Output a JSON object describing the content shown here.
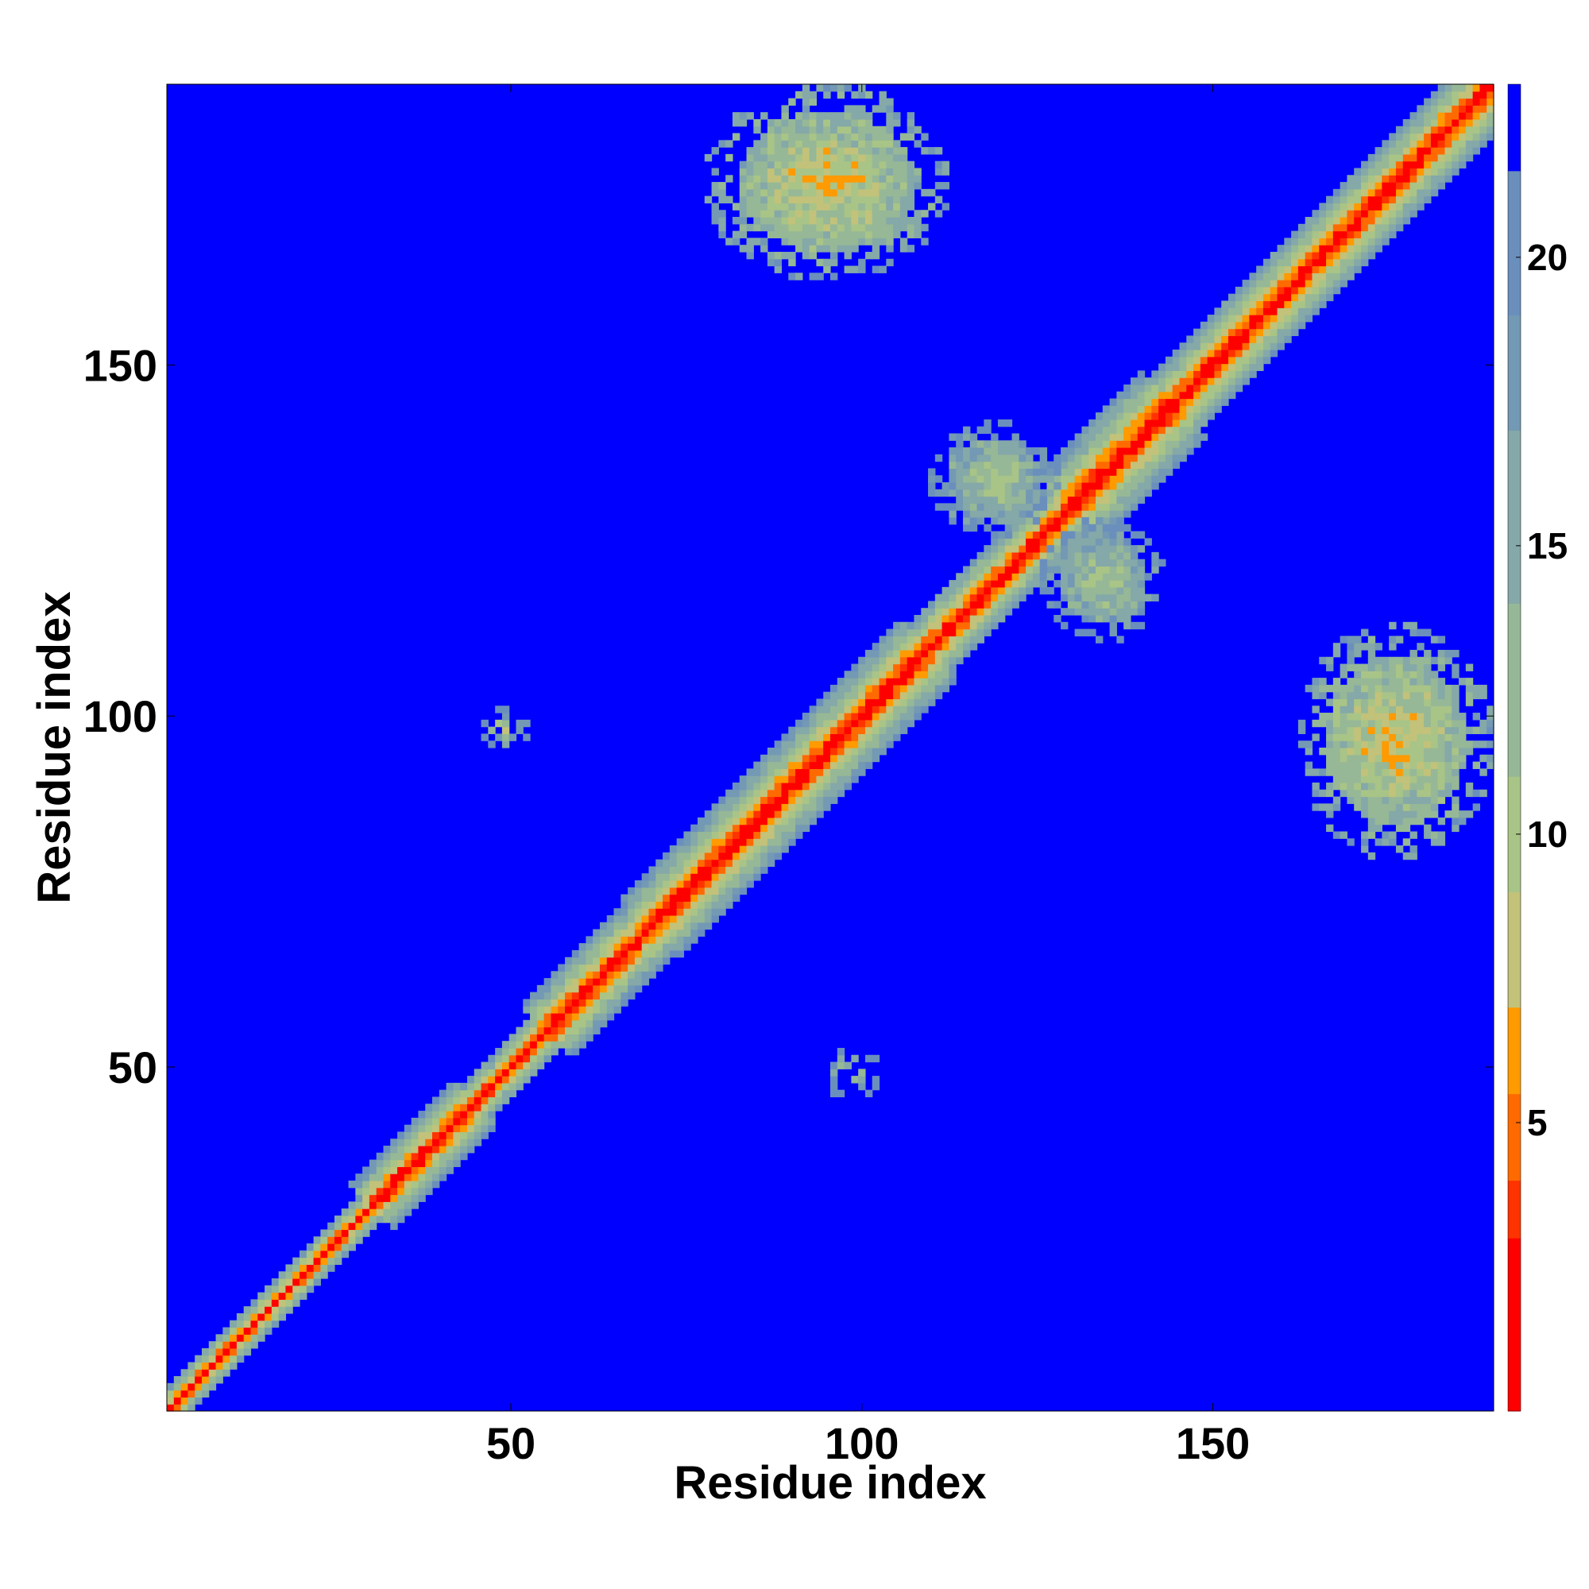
{
  "chart_data": {
    "type": "heatmap",
    "title": "",
    "xlabel": "Residue index",
    "ylabel": "Residue index",
    "n_residues": 190,
    "xlim": [
      1,
      190
    ],
    "ylim": [
      1,
      190
    ],
    "x_ticks": [
      50,
      100,
      150
    ],
    "y_ticks": [
      50,
      100,
      150
    ],
    "x_tick_labels": [
      "50",
      "100",
      "150"
    ],
    "y_tick_labels": [
      "50",
      "100",
      "150"
    ],
    "colorbar": {
      "range": [
        0,
        23
      ],
      "ticks": [
        5,
        10,
        15,
        20
      ],
      "tick_labels": [
        "5",
        "10",
        "15",
        "20"
      ],
      "levels": [
        {
          "min": 0,
          "max": 3,
          "color": "#ff0000"
        },
        {
          "min": 3,
          "max": 4,
          "color": "#ff3300"
        },
        {
          "min": 4,
          "max": 5.5,
          "color": "#ff6a00"
        },
        {
          "min": 5.5,
          "max": 7,
          "color": "#ff9a00"
        },
        {
          "min": 7,
          "max": 9,
          "color": "#c2c27a"
        },
        {
          "min": 9,
          "max": 11,
          "color": "#a9c487"
        },
        {
          "min": 11,
          "max": 14,
          "color": "#96b896"
        },
        {
          "min": 14,
          "max": 17,
          "color": "#85a8a8"
        },
        {
          "min": 17,
          "max": 19,
          "color": "#7399b4"
        },
        {
          "min": 19,
          "max": 21.5,
          "color": "#6a8fbd"
        },
        {
          "min": 21.5,
          "max": 23,
          "color": "#0000ff"
        }
      ]
    },
    "background_color": "#0000ff",
    "diagonal_band": {
      "start": 1,
      "end": 190,
      "core_value": 1,
      "outer_value": 19
    },
    "contact_regions": [
      {
        "x_range": [
          78,
          112
        ],
        "y_range": [
          163,
          190
        ],
        "min_value": 6
      },
      {
        "x_range": [
          163,
          190
        ],
        "y_range": [
          80,
          113
        ],
        "min_value": 6
      },
      {
        "x_range": [
          110,
          128
        ],
        "y_range": [
          126,
          142
        ],
        "min_value": 9
      },
      {
        "x_range": [
          126,
          143
        ],
        "y_range": [
          111,
          128
        ],
        "min_value": 9
      },
      {
        "x_range": [
          46,
          52
        ],
        "y_range": [
          96,
          101
        ],
        "min_value": 8
      },
      {
        "x_range": [
          96,
          102
        ],
        "y_range": [
          46,
          52
        ],
        "min_value": 8
      }
    ]
  }
}
